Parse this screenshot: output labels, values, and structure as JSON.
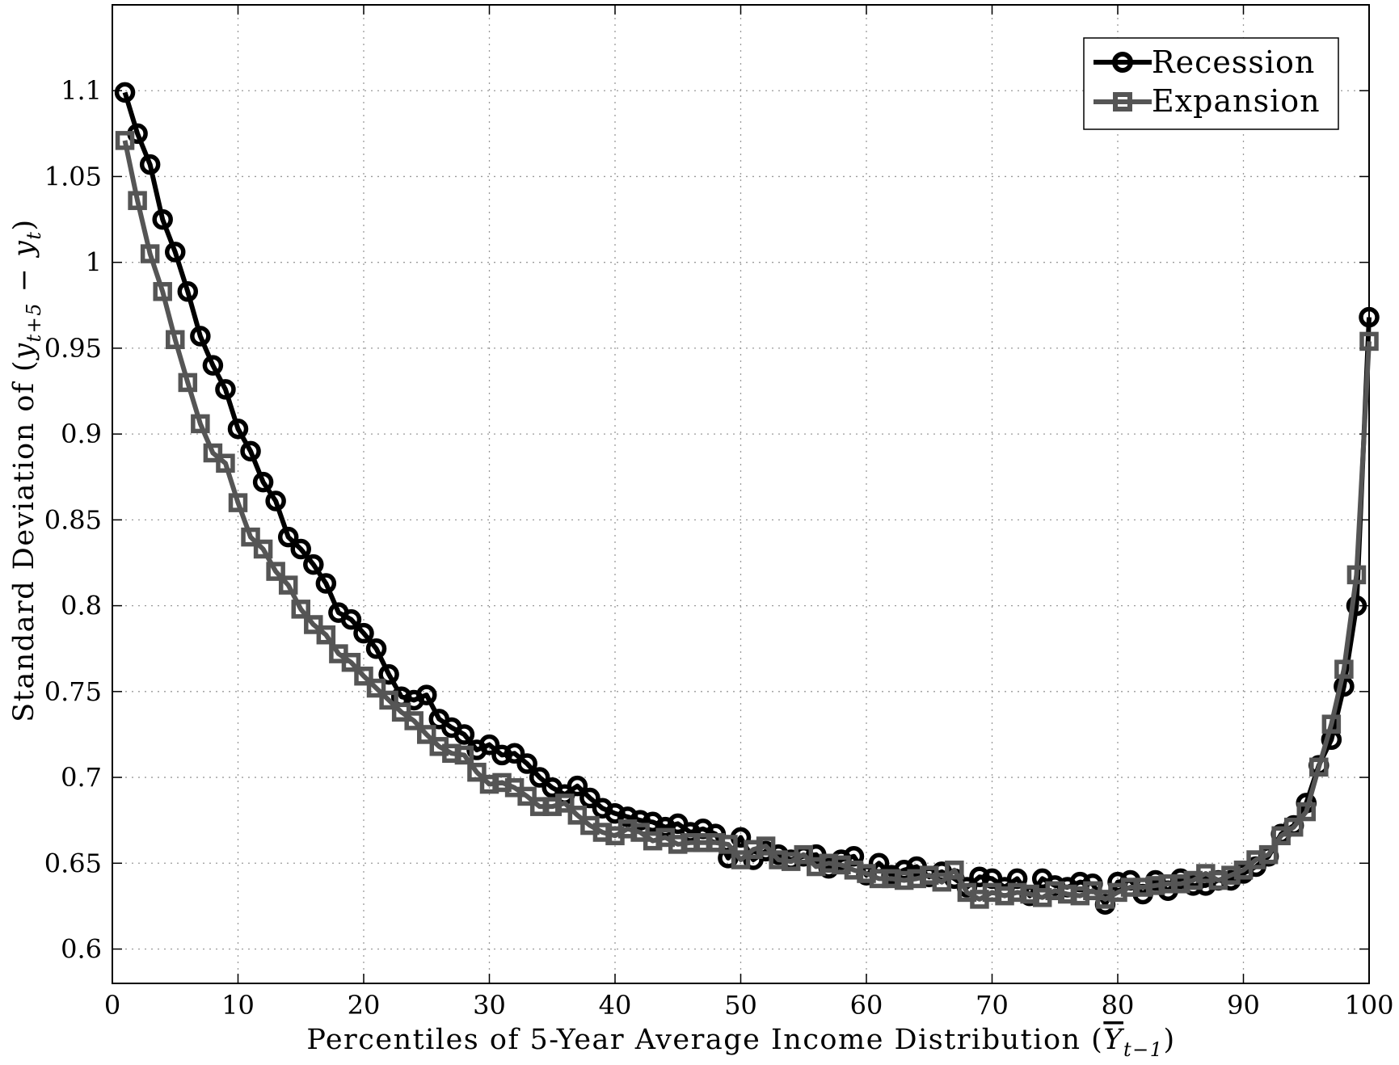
{
  "chart_data": {
    "type": "line",
    "xlabel_prefix": "Percentiles of 5-Year Average Income Distribution (",
    "xlabel_var": "Y",
    "xlabel_sub": "t−1",
    "xlabel_suffix": ")",
    "ylabel_prefix": "Standard Deviation of (",
    "ylabel_y1": "y",
    "ylabel_sub1": "t+5",
    "ylabel_minus": " − ",
    "ylabel_y2": "y",
    "ylabel_sub2": "t",
    "ylabel_suffix": ")",
    "xlim": [
      0,
      100
    ],
    "ylim": [
      0.58,
      1.15
    ],
    "xticks": [
      0,
      10,
      20,
      30,
      40,
      50,
      60,
      70,
      80,
      90,
      100
    ],
    "xtick_labels": [
      "0",
      "10",
      "20",
      "30",
      "40",
      "50",
      "60",
      "70",
      "80",
      "90",
      "100"
    ],
    "yticks": [
      0.6,
      0.65,
      0.7,
      0.75,
      0.8,
      0.85,
      0.9,
      0.95,
      1.0,
      1.05,
      1.1
    ],
    "ytick_labels": [
      "0.6",
      "0.65",
      "0.7",
      "0.75",
      "0.8",
      "0.85",
      "0.9",
      "0.95",
      "1",
      "1.05",
      "1.1"
    ],
    "grid": true,
    "legend_position": "top-right",
    "series": [
      {
        "name": "Recession",
        "color": "#000000",
        "marker": "circle",
        "x": [
          1,
          2,
          3,
          4,
          5,
          6,
          7,
          8,
          9,
          10,
          11,
          12,
          13,
          14,
          15,
          16,
          17,
          18,
          19,
          20,
          21,
          22,
          23,
          24,
          25,
          26,
          27,
          28,
          29,
          30,
          31,
          32,
          33,
          34,
          35,
          36,
          37,
          38,
          39,
          40,
          41,
          42,
          43,
          44,
          45,
          46,
          47,
          48,
          49,
          50,
          51,
          52,
          53,
          54,
          55,
          56,
          57,
          58,
          59,
          60,
          61,
          62,
          63,
          64,
          65,
          66,
          67,
          68,
          69,
          70,
          71,
          72,
          73,
          74,
          75,
          76,
          77,
          78,
          79,
          80,
          81,
          82,
          83,
          84,
          85,
          86,
          87,
          88,
          89,
          90,
          91,
          92,
          93,
          94,
          95,
          96,
          97,
          98,
          99,
          100
        ],
        "values": [
          1.099,
          1.075,
          1.057,
          1.025,
          1.006,
          0.983,
          0.957,
          0.94,
          0.926,
          0.903,
          0.89,
          0.872,
          0.861,
          0.84,
          0.833,
          0.824,
          0.813,
          0.796,
          0.792,
          0.784,
          0.775,
          0.76,
          0.747,
          0.745,
          0.748,
          0.734,
          0.729,
          0.725,
          0.716,
          0.719,
          0.713,
          0.714,
          0.708,
          0.7,
          0.694,
          0.69,
          0.695,
          0.688,
          0.682,
          0.679,
          0.677,
          0.675,
          0.674,
          0.671,
          0.673,
          0.668,
          0.67,
          0.667,
          0.653,
          0.665,
          0.652,
          0.657,
          0.655,
          0.652,
          0.654,
          0.655,
          0.647,
          0.652,
          0.654,
          0.643,
          0.65,
          0.643,
          0.646,
          0.648,
          0.642,
          0.645,
          0.641,
          0.636,
          0.642,
          0.641,
          0.636,
          0.641,
          0.631,
          0.641,
          0.637,
          0.636,
          0.639,
          0.638,
          0.626,
          0.639,
          0.64,
          0.632,
          0.64,
          0.634,
          0.641,
          0.637,
          0.637,
          0.64,
          0.64,
          0.644,
          0.648,
          0.654,
          0.667,
          0.672,
          0.685,
          0.707,
          0.722,
          0.753,
          0.8,
          0.968
        ]
      },
      {
        "name": "Expansion",
        "color": "#555555",
        "marker": "square",
        "x": [
          1,
          2,
          3,
          4,
          5,
          6,
          7,
          8,
          9,
          10,
          11,
          12,
          13,
          14,
          15,
          16,
          17,
          18,
          19,
          20,
          21,
          22,
          23,
          24,
          25,
          26,
          27,
          28,
          29,
          30,
          31,
          32,
          33,
          34,
          35,
          36,
          37,
          38,
          39,
          40,
          41,
          42,
          43,
          44,
          45,
          46,
          47,
          48,
          49,
          50,
          51,
          52,
          53,
          54,
          55,
          56,
          57,
          58,
          59,
          60,
          61,
          62,
          63,
          64,
          65,
          66,
          67,
          68,
          69,
          70,
          71,
          72,
          73,
          74,
          75,
          76,
          77,
          78,
          79,
          80,
          81,
          82,
          83,
          84,
          85,
          86,
          87,
          88,
          89,
          90,
          91,
          92,
          93,
          94,
          95,
          96,
          97,
          98,
          99,
          100
        ],
        "values": [
          1.071,
          1.036,
          1.005,
          0.983,
          0.955,
          0.93,
          0.906,
          0.889,
          0.883,
          0.86,
          0.84,
          0.833,
          0.82,
          0.812,
          0.798,
          0.789,
          0.783,
          0.772,
          0.767,
          0.759,
          0.752,
          0.745,
          0.738,
          0.733,
          0.725,
          0.718,
          0.714,
          0.713,
          0.703,
          0.696,
          0.697,
          0.694,
          0.689,
          0.683,
          0.683,
          0.685,
          0.678,
          0.672,
          0.668,
          0.666,
          0.67,
          0.668,
          0.663,
          0.665,
          0.661,
          0.662,
          0.662,
          0.662,
          0.661,
          0.652,
          0.658,
          0.66,
          0.652,
          0.651,
          0.655,
          0.648,
          0.65,
          0.649,
          0.646,
          0.644,
          0.641,
          0.641,
          0.64,
          0.641,
          0.643,
          0.639,
          0.646,
          0.633,
          0.629,
          0.633,
          0.631,
          0.633,
          0.632,
          0.63,
          0.634,
          0.632,
          0.631,
          0.634,
          0.629,
          0.633,
          0.636,
          0.636,
          0.637,
          0.638,
          0.638,
          0.64,
          0.644,
          0.64,
          0.643,
          0.646,
          0.652,
          0.655,
          0.666,
          0.671,
          0.68,
          0.706,
          0.731,
          0.763,
          0.818,
          0.954
        ]
      }
    ]
  }
}
